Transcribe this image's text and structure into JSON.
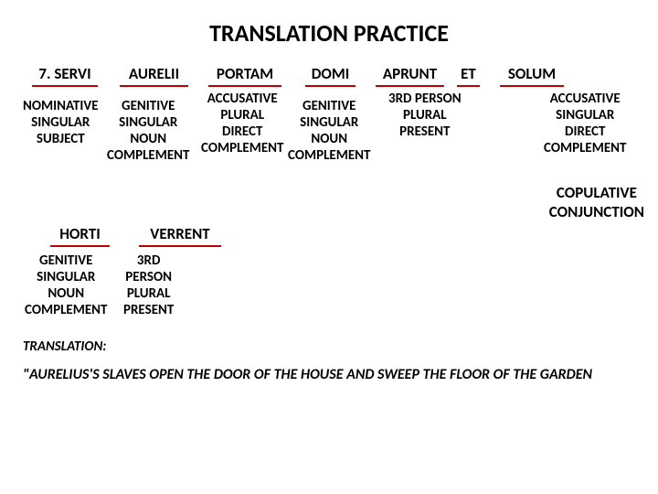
{
  "title": "TRANSLATION PRACTICE",
  "row1_words": {
    "servi": "7. SERVI",
    "aurelii": "AURELII",
    "portam": "PORTAM",
    "domi": "DOMI",
    "aprunt": "APRUNT",
    "et": "ET",
    "solum": "SOLUM"
  },
  "row2_words": {
    "horti": "HORTI",
    "verrent": "VERRENT"
  },
  "ann": {
    "servi": "NOMINATIVE\nSINGULAR\nSUBJECT",
    "aurelii": "GENITIVE\nSINGULAR\nNOUN\nCOMPLEMENT",
    "portam": "ACCUSATIVE\nPLURAL\nDIRECT\nCOMPLEMENT",
    "domi": "GENITIVE\nSINGULAR\nNOUN\nCOMPLEMENT",
    "aprunt": "3RD PERSON\nPLURAL\nPRESENT",
    "solum": "ACCUSATIVE\nSINGULAR\nDIRECT\nCOMPLEMENT",
    "horti": "GENITIVE\nSINGULAR\nNOUN\nCOMPLEMENT",
    "verrent": "3RD\nPERSON\nPLURAL\nPRESENT",
    "copulative": "COPULATIVE\nCONJUNCTION"
  },
  "translation_label": "TRANSLATION:",
  "translation_text": "\"AURELIUS'S SLAVES  OPEN    THE DOOR OF THE HOUSE AND SWEEP THE FLOOR OF THE GARDEN",
  "colors": {
    "underline": "#c00000",
    "text": "#000000",
    "background": "#ffffff"
  }
}
